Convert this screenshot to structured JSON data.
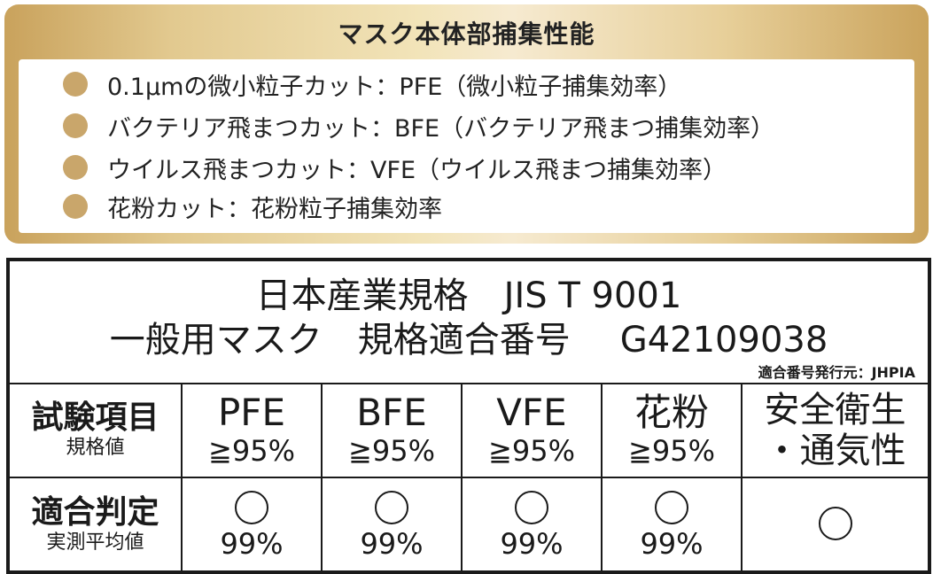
{
  "capture": {
    "title": "マスク本体部捕集性能",
    "items": [
      "0.1μmの微小粒子カット：PFE（微小粒子捕集効率）",
      "バクテリア飛まつカット：BFE（バクテリア飛まつ捕集効率）",
      "ウイルス飛まつカット：VFE（ウイルス飛まつ捕集効率）",
      "花粉カット：花粉粒子捕集効率"
    ],
    "bullet_color": "#c9a66b"
  },
  "standard": {
    "line1": "日本産業規格　JIS T 9001",
    "line2_left": "一般用マスク　規格適合番号",
    "line2_number": "G42109038",
    "issuer": "適合番号発行元：JHPIA"
  },
  "table": {
    "row1_label_main": "試験項目",
    "row1_label_sub": "規格値",
    "row2_label_main": "適合判定",
    "row2_label_sub": "実測平均値",
    "columns": [
      {
        "name": "PFE",
        "spec": "≧95%",
        "result_symbol": "○",
        "result_value": "99%"
      },
      {
        "name": "BFE",
        "spec": "≧95%",
        "result_symbol": "○",
        "result_value": "99%"
      },
      {
        "name": "VFE",
        "spec": "≧95%",
        "result_symbol": "○",
        "result_value": "99%"
      },
      {
        "name": "花粉",
        "spec": "≧95%",
        "result_symbol": "○",
        "result_value": "99%"
      }
    ],
    "last_column": {
      "line1": "安全衛生",
      "line2": "・通気性",
      "result_symbol": "○"
    }
  }
}
